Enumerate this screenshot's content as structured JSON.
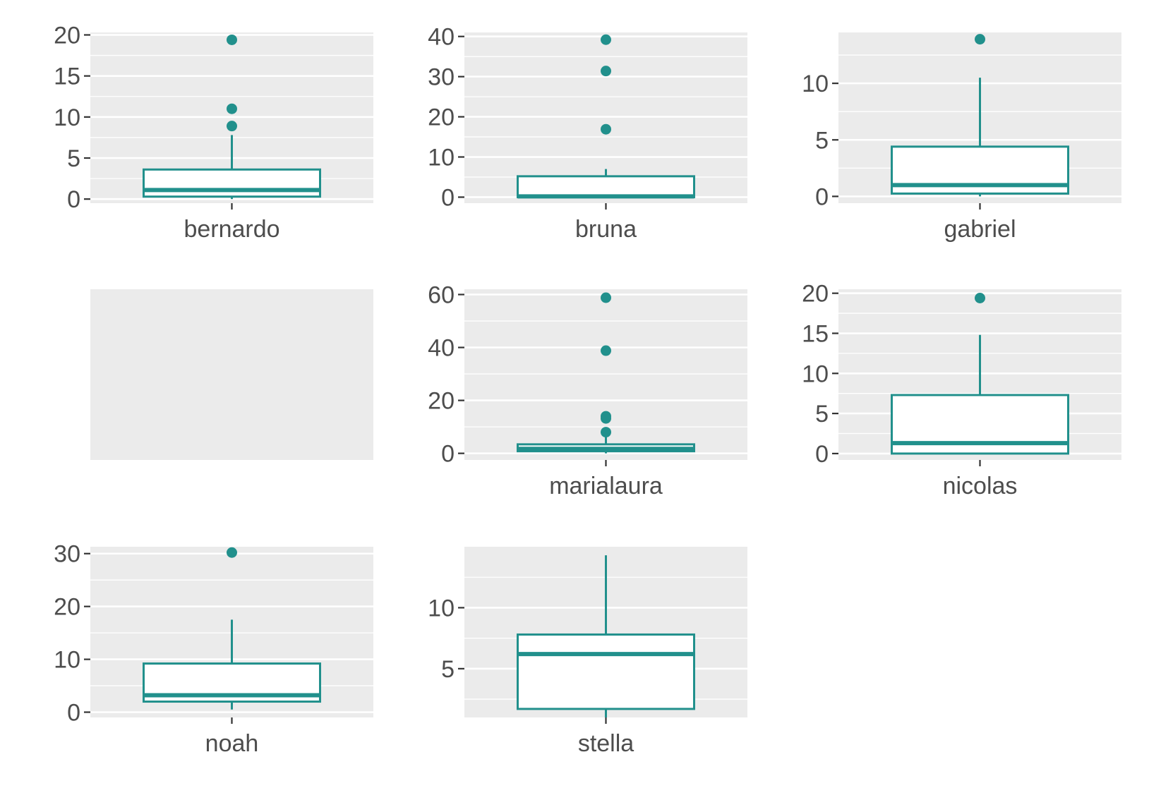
{
  "chart_data": [
    {
      "type": "boxplot",
      "category": "bernardo",
      "ylim": [
        -0.5,
        20.3
      ],
      "yticks": [
        0,
        5,
        10,
        15,
        20
      ],
      "box": {
        "min": 0,
        "q1": 0.3,
        "median": 1.1,
        "q3": 3.6,
        "max": 7.8
      },
      "outliers": [
        8.9,
        11.0,
        19.4
      ]
    },
    {
      "type": "boxplot",
      "category": "bruna",
      "ylim": [
        -1.5,
        41
      ],
      "yticks": [
        0,
        10,
        20,
        30,
        40
      ],
      "box": {
        "min": 0,
        "q1": 0,
        "median": 0.2,
        "q3": 5.2,
        "max": 7
      },
      "outliers": [
        16.9,
        31.4,
        39.2
      ]
    },
    {
      "type": "boxplot",
      "category": "gabriel",
      "ylim": [
        -0.6,
        14.5
      ],
      "yticks": [
        0,
        5,
        10
      ],
      "box": {
        "min": 0,
        "q1": 0.25,
        "median": 1.0,
        "q3": 4.4,
        "max": 10.5
      },
      "outliers": [
        13.9
      ]
    },
    {
      "type": "empty",
      "category": ""
    },
    {
      "type": "boxplot",
      "category": "marialaura",
      "ylim": [
        -2.5,
        62
      ],
      "yticks": [
        0,
        20,
        40,
        60
      ],
      "box": {
        "min": 0,
        "q1": 0.8,
        "median": 1.7,
        "q3": 3.4,
        "max": 6.5
      },
      "outliers": [
        8.0,
        13.2,
        14.0,
        38.8,
        58.8
      ]
    },
    {
      "type": "boxplot",
      "category": "nicolas",
      "ylim": [
        -0.8,
        20.5
      ],
      "yticks": [
        0,
        5,
        10,
        15,
        20
      ],
      "box": {
        "min": 0,
        "q1": 0,
        "median": 1.3,
        "q3": 7.3,
        "max": 14.8
      },
      "outliers": [
        19.4
      ]
    },
    {
      "type": "boxplot",
      "category": "noah",
      "ylim": [
        -1,
        31.3
      ],
      "yticks": [
        0,
        10,
        20,
        30
      ],
      "box": {
        "min": 0.5,
        "q1": 2.0,
        "median": 3.2,
        "q3": 9.2,
        "max": 17.5
      },
      "outliers": [
        30.2
      ]
    },
    {
      "type": "boxplot",
      "category": "stella",
      "ylim": [
        1.0,
        15.0
      ],
      "yticks": [
        5,
        10
      ],
      "box": {
        "min": 1.0,
        "q1": 1.7,
        "median": 6.2,
        "q3": 7.8,
        "max": 14.3
      },
      "outliers": []
    }
  ],
  "colors": {
    "accent": "#21908c",
    "panel_bg": "#ebebeb",
    "grid": "#ffffff",
    "axis_text": "#4d4d4d",
    "tick": "#333333"
  }
}
